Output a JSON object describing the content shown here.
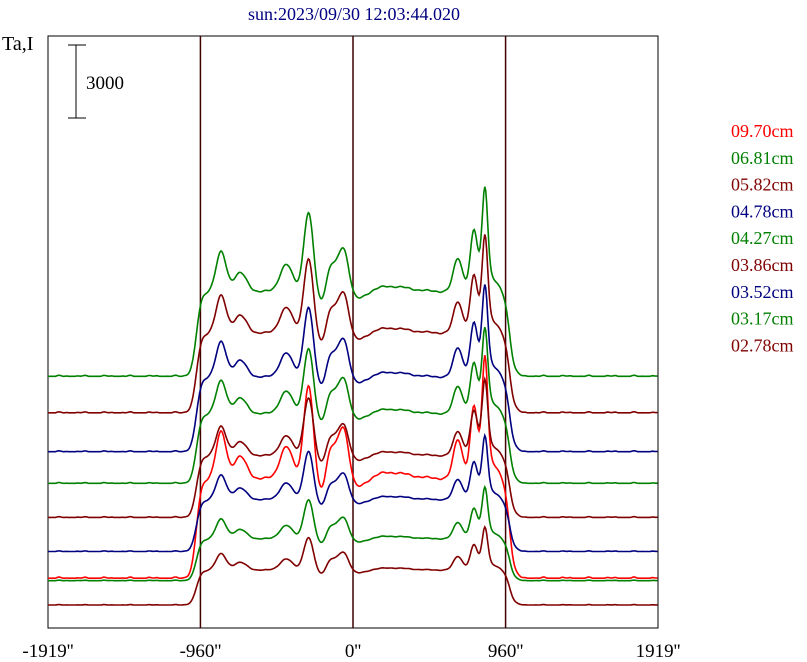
{
  "chart_data": {
    "type": "line",
    "title": "sun:2023/09/30 12:03:44.020",
    "ylabel": "Ta,I",
    "scale_bar": {
      "value": 3000,
      "label": "3000"
    },
    "xlim": [
      -1919,
      1919
    ],
    "x_ticks": [
      {
        "value": -1919,
        "label": "-1919''"
      },
      {
        "value": -960,
        "label": "-960''"
      },
      {
        "value": 0,
        "label": "0''"
      },
      {
        "value": 960,
        "label": "960''"
      },
      {
        "value": 1919,
        "label": "1919''"
      }
    ],
    "vertical_lines": [
      -960,
      0,
      960
    ],
    "grid": false,
    "legend_position": "right",
    "series": [
      {
        "name": "09.70cm",
        "color": "#ff0000",
        "baseline": 1100,
        "scale": 1.0
      },
      {
        "name": "06.81cm",
        "color": "#008000",
        "baseline": 9400,
        "scale": 0.85
      },
      {
        "name": "05.82cm",
        "color": "#800000",
        "baseline": 7900,
        "scale": 0.8
      },
      {
        "name": "04.78cm",
        "color": "#000080",
        "baseline": 6300,
        "scale": 0.75
      },
      {
        "name": "04.27cm",
        "color": "#008000",
        "baseline": 5000,
        "scale": 0.7
      },
      {
        "name": "03.86cm",
        "color": "#800000",
        "baseline": 3600,
        "scale": 0.62
      },
      {
        "name": "03.52cm",
        "color": "#000080",
        "baseline": 2200,
        "scale": 0.52
      },
      {
        "name": "03.17cm",
        "color": "#008000",
        "baseline": 1000,
        "scale": 0.42
      },
      {
        "name": "02.78cm",
        "color": "#800000",
        "baseline": 0,
        "scale": 0.35
      }
    ]
  },
  "colors": {
    "frame": "#000000",
    "marker_line": "#400000",
    "title": "#000080"
  }
}
